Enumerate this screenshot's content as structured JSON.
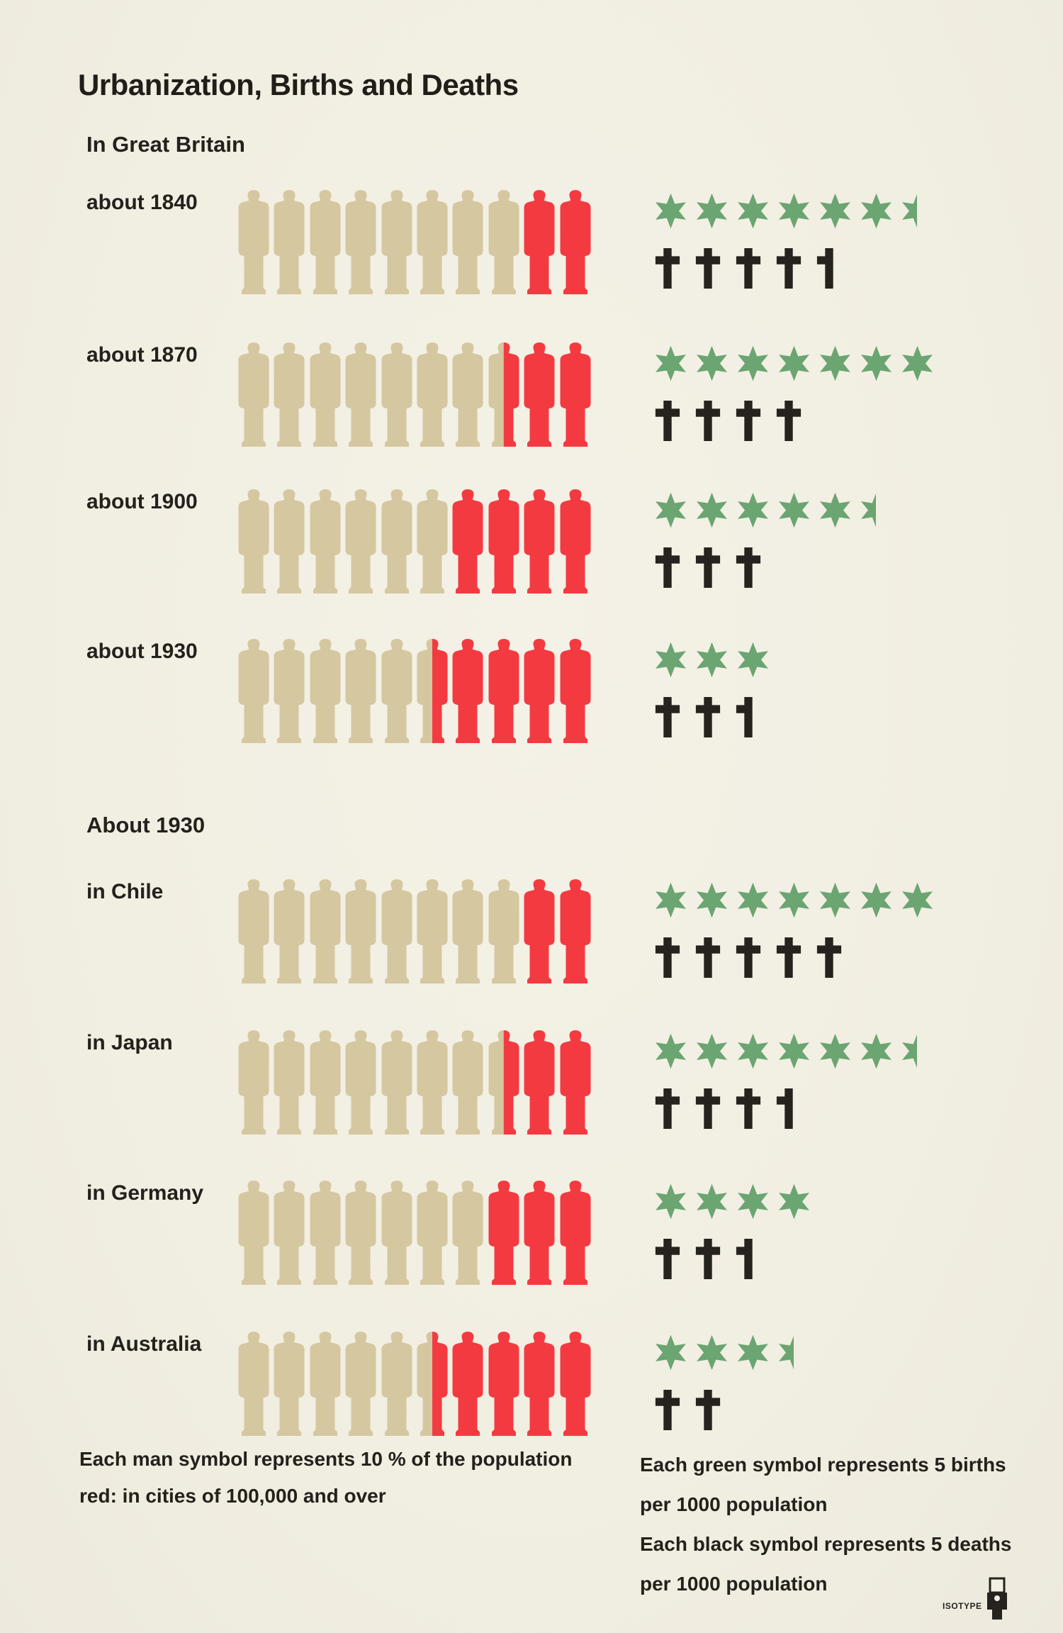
{
  "title": "Urbanization, Births and Deaths",
  "chart_data": {
    "type": "pictogram",
    "title": "Urbanization, Births and Deaths",
    "unit_definitions": {
      "man_symbol": "1 man symbol = 10 % of the population",
      "red_man_symbol": "red = living in cities of 100,000 and over",
      "green_star_symbol": "1 green star = 5 births per 1000 population",
      "black_cross_symbol": "1 black cross = 5 deaths per 1000 population"
    },
    "colors": {
      "paper": "#f2efe4",
      "rural_tan": "#d5c7a0",
      "urban_red": "#f43a41",
      "births_green": "#6ba571",
      "deaths_black": "#26231e",
      "text": "#24211c"
    },
    "sections": [
      {
        "heading": "In Great Britain",
        "rows": [
          {
            "label": "about 1840",
            "men_total": 10,
            "men_tan": 8,
            "men_red": 2,
            "urban_percent": 20,
            "star_symbols": 6.5,
            "births_per_1000": 32.5,
            "cross_symbols": 4.5,
            "deaths_per_1000": 22.5
          },
          {
            "label": "about 1870",
            "men_total": 10,
            "men_tan": 7.5,
            "men_red": 2.5,
            "urban_percent": 25,
            "star_symbols": 7,
            "births_per_1000": 35,
            "cross_symbols": 4,
            "deaths_per_1000": 20
          },
          {
            "label": "about 1900",
            "men_total": 10,
            "men_tan": 6,
            "men_red": 4,
            "urban_percent": 40,
            "star_symbols": 5.5,
            "births_per_1000": 27.5,
            "cross_symbols": 3,
            "deaths_per_1000": 15
          },
          {
            "label": "about 1930",
            "men_total": 10,
            "men_tan": 5.5,
            "men_red": 4.5,
            "urban_percent": 45,
            "star_symbols": 3,
            "births_per_1000": 15,
            "cross_symbols": 2.5,
            "deaths_per_1000": 12.5
          }
        ]
      },
      {
        "heading": "About 1930",
        "rows": [
          {
            "label": "in Chile",
            "men_total": 10,
            "men_tan": 8,
            "men_red": 2,
            "urban_percent": 20,
            "star_symbols": 7,
            "births_per_1000": 35,
            "cross_symbols": 5,
            "deaths_per_1000": 25
          },
          {
            "label": "in Japan",
            "men_total": 10,
            "men_tan": 7.5,
            "men_red": 2.5,
            "urban_percent": 25,
            "star_symbols": 6.5,
            "births_per_1000": 32.5,
            "cross_symbols": 3.5,
            "deaths_per_1000": 17.5
          },
          {
            "label": "in Germany",
            "men_total": 10,
            "men_tan": 7,
            "men_red": 3,
            "urban_percent": 30,
            "star_symbols": 4,
            "births_per_1000": 20,
            "cross_symbols": 2.5,
            "deaths_per_1000": 12.5
          },
          {
            "label": "in Australia",
            "men_total": 10,
            "men_tan": 5.5,
            "men_red": 4.5,
            "urban_percent": 45,
            "star_symbols": 3.5,
            "births_per_1000": 17.5,
            "cross_symbols": 2,
            "deaths_per_1000": 10
          }
        ]
      }
    ],
    "legend": {
      "men_line1": "Each man symbol represents 10 % of the population",
      "men_line2": "red: in cities of 100,000 and over",
      "births_line1": "Each green symbol represents 5 births",
      "births_line2": "per 1000 population",
      "deaths_line1": "Each black symbol represents 5 deaths",
      "deaths_line2": "per 1000 population"
    },
    "credit": "ISOTYPE"
  }
}
